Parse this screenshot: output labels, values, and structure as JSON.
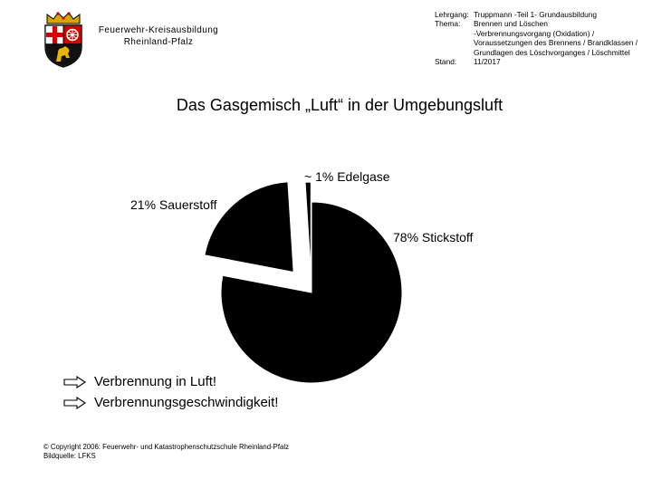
{
  "header": {
    "org_line1": "Feuerwehr-Kreisausbildung",
    "org_line2": "Rheinland-Pfalz",
    "meta": [
      {
        "label": "Lehrgang:",
        "value": "Truppmann -Teil 1- Grundausbildung"
      },
      {
        "label": "Thema:",
        "value": "Brennen und Löschen"
      },
      {
        "label": "",
        "value": "-Verbrennungsvorgang (Oxidation) /"
      },
      {
        "label": "",
        "value": "Voraussetzungen des Brennens / Brandklassen /"
      },
      {
        "label": "",
        "value": "Grundlagen des Löschvorganges / Löschmittel"
      },
      {
        "label": "Stand:",
        "value": "11/2017"
      }
    ]
  },
  "title": "Das Gasgemisch „Luft“ in der Umgebungsluft",
  "chart_data": {
    "type": "pie",
    "title": "",
    "slices": [
      {
        "label": "78% Stickstoff",
        "value": 78
      },
      {
        "label": "21% Sauerstoff",
        "value": 21
      },
      {
        "label": "~ 1% Edelgase",
        "value": 1
      }
    ]
  },
  "bullets": [
    "Verbrennung in Luft!",
    "Verbrennungsgeschwindigkeit!"
  ],
  "footer": {
    "copyright": "© Copyright 2006: Feuerwehr- und Katastrophenschutzschule Rheinland-Pfalz",
    "source": "Bildquelle: LFKS"
  },
  "colors": {
    "slice": "#000000",
    "background": "#ffffff"
  }
}
